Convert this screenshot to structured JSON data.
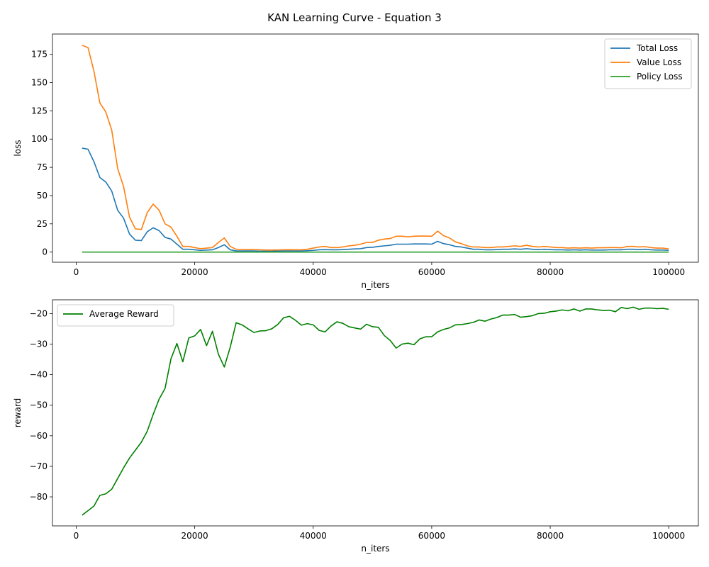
{
  "figure_title": "KAN Learning Curve - Equation 3",
  "chart_data": [
    {
      "type": "line",
      "xlabel": "n_iters",
      "ylabel": "loss",
      "xlim": [
        -4000,
        105000
      ],
      "ylim": [
        -9,
        193
      ],
      "xticks": [
        0,
        20000,
        40000,
        60000,
        80000,
        100000
      ],
      "yticks": [
        0,
        25,
        50,
        75,
        100,
        125,
        150,
        175
      ],
      "grid": false,
      "legend_position": "top-right",
      "x": [
        1000,
        2000,
        3000,
        4000,
        5000,
        6000,
        7000,
        8000,
        9000,
        10000,
        11000,
        12000,
        13000,
        14000,
        15000,
        16000,
        17000,
        18000,
        19000,
        20000,
        21000,
        22000,
        23000,
        24000,
        25000,
        26000,
        27000,
        28000,
        29000,
        30000,
        31000,
        32000,
        33000,
        34000,
        35000,
        36000,
        37000,
        38000,
        39000,
        40000,
        41000,
        42000,
        43000,
        44000,
        45000,
        46000,
        47000,
        48000,
        49000,
        50000,
        51000,
        52000,
        53000,
        54000,
        55000,
        56000,
        57000,
        58000,
        59000,
        60000,
        61000,
        62000,
        63000,
        64000,
        65000,
        66000,
        67000,
        68000,
        69000,
        70000,
        71000,
        72000,
        73000,
        74000,
        75000,
        76000,
        77000,
        78000,
        79000,
        80000,
        81000,
        82000,
        83000,
        84000,
        85000,
        86000,
        87000,
        88000,
        89000,
        90000,
        91000,
        92000,
        93000,
        94000,
        95000,
        96000,
        97000,
        98000,
        99000,
        100000
      ],
      "series": [
        {
          "name": "Total Loss",
          "color": "#1f77b4",
          "values": [
            92,
            91,
            80,
            66,
            62,
            54,
            37,
            30,
            16,
            10.5,
            10.2,
            18,
            21.5,
            19,
            13,
            11.5,
            7,
            2.5,
            2.5,
            2,
            1.5,
            1.8,
            2,
            4,
            6.5,
            2,
            1,
            1,
            1,
            1,
            0.8,
            0.8,
            0.8,
            0.9,
            1,
            1,
            1,
            1,
            1.2,
            1.5,
            2,
            2.2,
            2,
            2,
            2.2,
            2.5,
            2.8,
            3,
            4,
            4.2,
            5,
            5.5,
            6,
            7,
            7,
            7,
            7.2,
            7.2,
            7.2,
            7,
            9.5,
            7.5,
            6.5,
            5,
            4.5,
            3.5,
            2.5,
            2.5,
            2,
            2,
            2.2,
            2.5,
            2.5,
            2.8,
            2.5,
            3,
            2.5,
            2.2,
            2.5,
            2.2,
            2,
            2,
            1.8,
            2,
            1.8,
            2,
            1.8,
            1.8,
            1.8,
            2,
            2,
            2,
            2.5,
            2.5,
            2.2,
            2.5,
            2,
            1.8,
            1.8,
            1.5
          ]
        },
        {
          "name": "Value Loss",
          "color": "#ff7f0e",
          "values": [
            183,
            181,
            160,
            132,
            124,
            108,
            74,
            58,
            31,
            20.5,
            20,
            35,
            42.5,
            37,
            25,
            22,
            14,
            5,
            5,
            4,
            3,
            3.5,
            4,
            8.5,
            12.5,
            5,
            2.5,
            2.3,
            2.2,
            2.2,
            2,
            1.8,
            1.8,
            1.9,
            2,
            2.1,
            2,
            2,
            2.5,
            3.5,
            4.5,
            5,
            4,
            4,
            4.5,
            5.5,
            6,
            7,
            8.5,
            8.5,
            10.5,
            11.5,
            12,
            14,
            14,
            13.5,
            14,
            14.2,
            14.2,
            14,
            18.5,
            14.5,
            12.5,
            9,
            7.5,
            5.5,
            4.5,
            4.5,
            4,
            4,
            4.5,
            4.5,
            5,
            5.5,
            5,
            6,
            5,
            4.5,
            5,
            4.5,
            4,
            4,
            3.5,
            3.8,
            3.5,
            3.8,
            3.5,
            3.8,
            3.8,
            4,
            4,
            3.8,
            5,
            5,
            4.5,
            4.8,
            4,
            3.5,
            3.5,
            2.8
          ]
        },
        {
          "name": "Policy Loss",
          "color": "#2ca02c",
          "values": [
            0,
            0,
            0,
            0,
            0,
            0,
            0,
            0,
            0,
            0,
            0,
            0,
            0,
            0,
            0,
            0,
            0,
            0,
            0,
            0,
            0,
            0,
            0,
            0,
            0,
            0,
            0,
            0,
            0,
            0,
            0,
            0,
            0,
            0,
            0,
            0,
            0,
            0,
            0,
            0,
            0,
            0,
            0,
            0,
            0,
            0,
            0,
            0,
            0,
            0,
            0,
            0,
            0,
            0,
            0,
            0,
            0,
            0,
            0,
            0,
            0,
            0,
            0,
            0,
            0,
            0,
            0,
            0,
            0,
            0,
            0,
            0,
            0,
            0,
            0,
            0,
            0,
            0,
            0,
            0,
            0,
            0,
            0,
            0,
            0,
            0,
            0,
            0,
            0,
            0,
            0,
            0,
            0,
            0,
            0,
            0,
            0,
            0,
            0,
            0
          ]
        }
      ]
    },
    {
      "type": "line",
      "xlabel": "n_iters",
      "ylabel": "reward",
      "xlim": [
        -4000,
        105000
      ],
      "ylim": [
        -89.5,
        -15.5
      ],
      "xticks": [
        0,
        20000,
        40000,
        60000,
        80000,
        100000
      ],
      "yticks": [
        -80,
        -70,
        -60,
        -50,
        -40,
        -30,
        -20
      ],
      "grid": false,
      "legend_position": "top-left",
      "x": [
        1000,
        2000,
        3000,
        4000,
        5000,
        6000,
        7000,
        8000,
        9000,
        10000,
        11000,
        12000,
        13000,
        14000,
        15000,
        16000,
        17000,
        18000,
        19000,
        20000,
        21000,
        22000,
        23000,
        24000,
        25000,
        26000,
        27000,
        28000,
        29000,
        30000,
        31000,
        32000,
        33000,
        34000,
        35000,
        36000,
        37000,
        38000,
        39000,
        40000,
        41000,
        42000,
        43000,
        44000,
        45000,
        46000,
        47000,
        48000,
        49000,
        50000,
        51000,
        52000,
        53000,
        54000,
        55000,
        56000,
        57000,
        58000,
        59000,
        60000,
        61000,
        62000,
        63000,
        64000,
        65000,
        66000,
        67000,
        68000,
        69000,
        70000,
        71000,
        72000,
        73000,
        74000,
        75000,
        76000,
        77000,
        78000,
        79000,
        80000,
        81000,
        82000,
        83000,
        84000,
        85000,
        86000,
        87000,
        88000,
        89000,
        90000,
        91000,
        92000,
        93000,
        94000,
        95000,
        96000,
        97000,
        98000,
        99000,
        100000
      ],
      "series": [
        {
          "name": "Average Reward",
          "color": "#008000",
          "values": [
            -86,
            -84.5,
            -83,
            -79.5,
            -79,
            -77.5,
            -74,
            -70.5,
            -67.3,
            -64.7,
            -62.1,
            -58.5,
            -53,
            -48,
            -44.5,
            -34.8,
            -29.8,
            -35.8,
            -28,
            -27.3,
            -25.2,
            -30.5,
            -25.8,
            -33.3,
            -37.5,
            -31,
            -23,
            -23.7,
            -25,
            -26.2,
            -25.7,
            -25.6,
            -25,
            -23.6,
            -21.4,
            -20.9,
            -22.2,
            -23.8,
            -23.3,
            -23.7,
            -25.5,
            -26,
            -24.1,
            -22.7,
            -23.2,
            -24.3,
            -24.7,
            -25.1,
            -23.5,
            -24.3,
            -24.5,
            -27.2,
            -28.8,
            -31.3,
            -30,
            -29.7,
            -30.2,
            -28.3,
            -27.6,
            -27.6,
            -26,
            -25.2,
            -24.7,
            -23.7,
            -23.6,
            -23.3,
            -22.9,
            -22.1,
            -22.5,
            -21.8,
            -21.3,
            -20.5,
            -20.5,
            -20.3,
            -21.2,
            -21,
            -20.7,
            -20,
            -19.9,
            -19.4,
            -19.2,
            -18.8,
            -19.1,
            -18.5,
            -19.2,
            -18.5,
            -18.5,
            -18.8,
            -19,
            -18.9,
            -19.4,
            -18,
            -18.4,
            -17.9,
            -18.6,
            -18.2,
            -18.2,
            -18.4,
            -18.3,
            -18.6
          ]
        }
      ]
    }
  ]
}
